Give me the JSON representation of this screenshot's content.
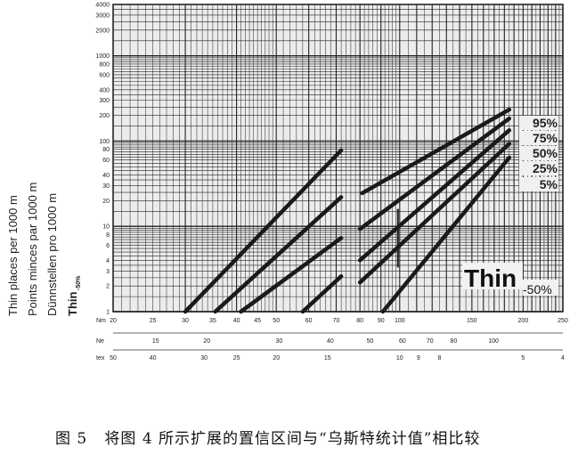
{
  "chart_data": {
    "type": "line",
    "title": "",
    "x_scale": "log",
    "y_scale": "log",
    "xlim": [
      20,
      250
    ],
    "ylim": [
      1,
      4000
    ],
    "grid": true,
    "ylabel_lines": [
      "Thin places per 1000 m",
      "Points minces par 1000 m",
      "Dünnstellen pro 1000 m"
    ],
    "ylabel_sub": {
      "main": "Thin",
      "sub": "-50%"
    },
    "y_ticks": [
      1,
      2,
      3,
      4,
      6,
      8,
      10,
      20,
      30,
      40,
      60,
      80,
      100,
      200,
      300,
      400,
      600,
      800,
      1000,
      2000,
      3000,
      4000
    ],
    "x_axes": [
      {
        "name": "Nm",
        "ticks": [
          20,
          25,
          30,
          35,
          40,
          45,
          50,
          60,
          70,
          80,
          90,
          100,
          150,
          200,
          250
        ]
      },
      {
        "name": "Ne",
        "ticks": [
          15,
          20,
          30,
          40,
          50,
          60,
          70,
          80,
          100
        ]
      },
      {
        "name": "tex",
        "ticks": [
          50,
          40,
          30,
          25,
          20,
          15,
          10,
          9,
          8,
          5,
          4
        ]
      }
    ],
    "series": [
      {
        "group": "statistics",
        "points": [
          [
            30,
            1
          ],
          [
            72,
            78
          ]
        ]
      },
      {
        "group": "statistics",
        "points": [
          [
            35.5,
            1
          ],
          [
            72,
            22
          ]
        ]
      },
      {
        "group": "statistics",
        "points": [
          [
            41,
            1
          ],
          [
            72,
            7.3
          ]
        ]
      },
      {
        "group": "statistics",
        "points": [
          [
            58,
            1
          ],
          [
            72,
            2.6
          ]
        ]
      },
      {
        "name": "95%",
        "group": "confidence",
        "points": [
          [
            81,
            24.5
          ],
          [
            185,
            234
          ]
        ]
      },
      {
        "name": "75%",
        "group": "confidence",
        "points": [
          [
            80,
            9.3
          ],
          [
            185,
            184
          ]
        ]
      },
      {
        "name": "50%",
        "group": "confidence",
        "points": [
          [
            80,
            4
          ],
          [
            185,
            134
          ]
        ]
      },
      {
        "name": "25%",
        "group": "confidence",
        "points": [
          [
            80,
            2.2
          ],
          [
            185,
            93
          ]
        ]
      },
      {
        "name": "5%",
        "group": "confidence",
        "points": [
          [
            91,
            1
          ],
          [
            185,
            64
          ]
        ]
      }
    ],
    "marker_line": {
      "x": 100,
      "y": [
        3.3,
        16
      ]
    },
    "annotation": {
      "main": "Thin",
      "sub": "-50%"
    }
  },
  "caption": "图 5   将图 4 所示扩展的置信区间与“乌斯特统计值”相比较"
}
